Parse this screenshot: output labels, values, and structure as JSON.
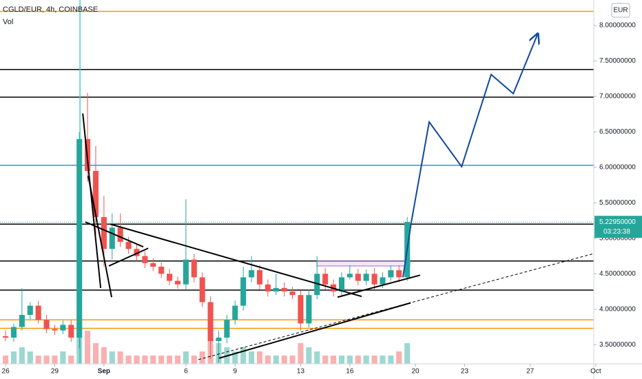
{
  "chart_data": {
    "type": "candlestick",
    "title": "CGLD/EUR, 4h, COINBASE",
    "subtitle": "Vol",
    "currency": "EUR",
    "x": [
      0,
      0.5,
      1,
      1.5,
      2,
      2.5,
      3,
      3.5,
      4,
      4.5,
      5,
      5.5,
      6,
      6.5,
      7,
      7.5,
      8,
      8.5,
      9,
      9.5,
      10,
      10.5,
      11,
      11.5,
      12,
      12.5,
      13,
      13.5,
      14,
      14.5,
      15,
      15.5,
      16,
      16.5,
      17,
      17.5,
      18,
      18.5,
      19,
      19.5,
      20,
      20.5,
      21,
      21.5,
      22,
      22.5,
      23,
      23.5,
      24,
      24.5
    ],
    "open": [
      3.62,
      3.6,
      3.75,
      3.92,
      4.05,
      3.85,
      3.72,
      3.7,
      3.78,
      3.6,
      6.4,
      5.95,
      5.3,
      4.85,
      5.15,
      4.95,
      4.85,
      4.75,
      4.65,
      4.6,
      4.5,
      4.4,
      4.35,
      4.7,
      4.45,
      4.1,
      3.55,
      3.6,
      3.85,
      4.05,
      4.45,
      4.55,
      4.35,
      4.25,
      4.3,
      4.25,
      4.2,
      3.8,
      4.2,
      4.5,
      4.35,
      4.25,
      4.45,
      4.5,
      4.4,
      4.5,
      4.35,
      4.45,
      4.55,
      4.45
    ],
    "high": [
      3.7,
      3.8,
      4.3,
      4.1,
      4.12,
      3.92,
      3.78,
      3.84,
      3.85,
      6.5,
      7.05,
      6.3,
      5.6,
      5.35,
      5.35,
      5.02,
      4.92,
      4.82,
      4.72,
      4.66,
      4.57,
      4.46,
      5.55,
      4.78,
      4.52,
      4.18,
      3.7,
      3.92,
      4.12,
      4.6,
      4.75,
      4.62,
      4.42,
      4.5,
      4.38,
      4.32,
      4.26,
      4.28,
      4.75,
      4.58,
      4.42,
      4.52,
      4.62,
      4.57,
      4.56,
      4.58,
      4.52,
      4.62,
      4.62,
      5.3
    ],
    "low": [
      3.55,
      3.54,
      3.7,
      3.86,
      3.8,
      3.66,
      3.64,
      3.65,
      3.54,
      3.45,
      5.8,
      5.0,
      4.6,
      4.7,
      4.88,
      4.78,
      4.68,
      4.58,
      4.54,
      4.44,
      4.34,
      4.29,
      4.28,
      4.38,
      4.03,
      3.3,
      3.25,
      3.52,
      3.78,
      3.98,
      4.38,
      4.28,
      4.18,
      4.2,
      4.18,
      4.14,
      3.7,
      3.74,
      4.14,
      4.28,
      4.18,
      4.18,
      4.42,
      4.34,
      4.34,
      4.28,
      4.3,
      4.4,
      4.38,
      4.4
    ],
    "close": [
      3.6,
      3.75,
      3.92,
      4.05,
      3.85,
      3.72,
      3.7,
      3.78,
      3.6,
      6.4,
      5.95,
      5.3,
      4.85,
      5.15,
      4.95,
      4.85,
      4.75,
      4.65,
      4.6,
      4.5,
      4.4,
      4.35,
      4.7,
      4.45,
      4.1,
      3.55,
      3.6,
      3.85,
      4.05,
      4.45,
      4.55,
      4.35,
      4.25,
      4.3,
      4.25,
      4.2,
      3.8,
      4.2,
      4.5,
      4.35,
      4.25,
      4.45,
      4.5,
      4.4,
      4.5,
      4.35,
      4.45,
      4.55,
      4.45,
      5.23
    ],
    "volume": [
      2,
      3,
      4,
      3,
      2,
      2,
      2,
      3,
      2,
      10,
      8,
      5,
      4,
      3,
      3,
      2,
      2,
      2,
      2,
      2,
      2,
      2,
      3,
      2,
      3,
      6,
      5,
      4,
      3,
      4,
      3,
      3,
      2,
      2,
      2,
      2,
      5,
      4,
      3,
      2,
      2,
      2,
      2,
      2,
      2,
      2,
      2,
      2,
      3,
      5
    ],
    "up_color": "#26a69a",
    "down_color": "#ef5350",
    "xlim": [
      -0.34,
      35.88
    ],
    "ylim": [
      3.23,
      8.36
    ],
    "xticks": [
      {
        "value": 0,
        "label": "26"
      },
      {
        "value": 3,
        "label": "29"
      },
      {
        "value": 6,
        "label": "Sep"
      },
      {
        "value": 11,
        "label": "6"
      },
      {
        "value": 14,
        "label": "9"
      },
      {
        "value": 18,
        "label": "13"
      },
      {
        "value": 21,
        "label": "16"
      },
      {
        "value": 25,
        "label": "20"
      },
      {
        "value": 28,
        "label": "23"
      },
      {
        "value": 32,
        "label": "27"
      },
      {
        "value": 36,
        "label": "Oct"
      }
    ],
    "yticks": [
      {
        "value": 3.5,
        "label": "3.50000000"
      },
      {
        "value": 4.0,
        "label": "4.00000000"
      },
      {
        "value": 4.5,
        "label": "4.50000000"
      },
      {
        "value": 5.0,
        "label": "5.00000000"
      },
      {
        "value": 5.5,
        "label": "5.50000000"
      },
      {
        "value": 6.0,
        "label": "6.00000000"
      },
      {
        "value": 6.5,
        "label": "6.50000000"
      },
      {
        "value": 7.0,
        "label": "7.00000000"
      },
      {
        "value": 7.5,
        "label": "7.50000000"
      },
      {
        "value": 8.0,
        "label": "8.00000000"
      }
    ],
    "last_price": {
      "value": 5.2295,
      "label": "5.22950000"
    },
    "countdown": "03:23:38",
    "hlines": [
      {
        "value": 8.2,
        "color": "#ff9800"
      },
      {
        "value": 7.38,
        "color": "#000000"
      },
      {
        "value": 6.99,
        "color": "#000000"
      },
      {
        "value": 6.03,
        "color": "#2196f3"
      },
      {
        "value": 5.2,
        "color": "#000000"
      },
      {
        "value": 4.68,
        "color": "#000000"
      },
      {
        "value": 4.27,
        "color": "#000000"
      },
      {
        "value": 3.85,
        "color": "#ff9800"
      },
      {
        "value": 3.73,
        "color": "#ff9800"
      }
    ],
    "vline": {
      "value": 4.54,
      "color": "#4dd0c4"
    },
    "trendlines": [
      {
        "x": [
          4.71,
          5.8
        ],
        "y": [
          6.76,
          4.3
        ]
      },
      {
        "x": [
          5.04,
          6.47
        ],
        "y": [
          5.88,
          4.17
        ]
      },
      {
        "x": [
          4.87,
          8.4
        ],
        "y": [
          5.23,
          4.88
        ]
      },
      {
        "x": [
          6.3,
          8.7
        ],
        "y": [
          4.61,
          4.86
        ]
      },
      {
        "x": [
          6.39,
          21.72
        ],
        "y": [
          5.2,
          4.18
        ]
      },
      {
        "x": [
          13.03,
          24.71
        ],
        "y": [
          3.31,
          4.09
        ]
      },
      {
        "x": [
          20.25,
          25.29
        ],
        "y": [
          4.17,
          4.48
        ]
      }
    ],
    "dashed_line": {
      "x": [
        11.76,
        36.13
      ],
      "y": [
        3.29,
        4.8
      ]
    },
    "range_box": {
      "x": [
        18.99,
        24.66
      ],
      "y": [
        4.68,
        4.61
      ],
      "color": "#9c6ad4"
    },
    "projection": {
      "color": "#0d47a1",
      "x": [
        24.24,
        24.75,
        25.84,
        27.82,
        29.62,
        30.97,
        32.44
      ],
      "y": [
        4.45,
        5.23,
        6.64,
        6.01,
        7.31,
        7.04,
        7.87
      ]
    }
  }
}
